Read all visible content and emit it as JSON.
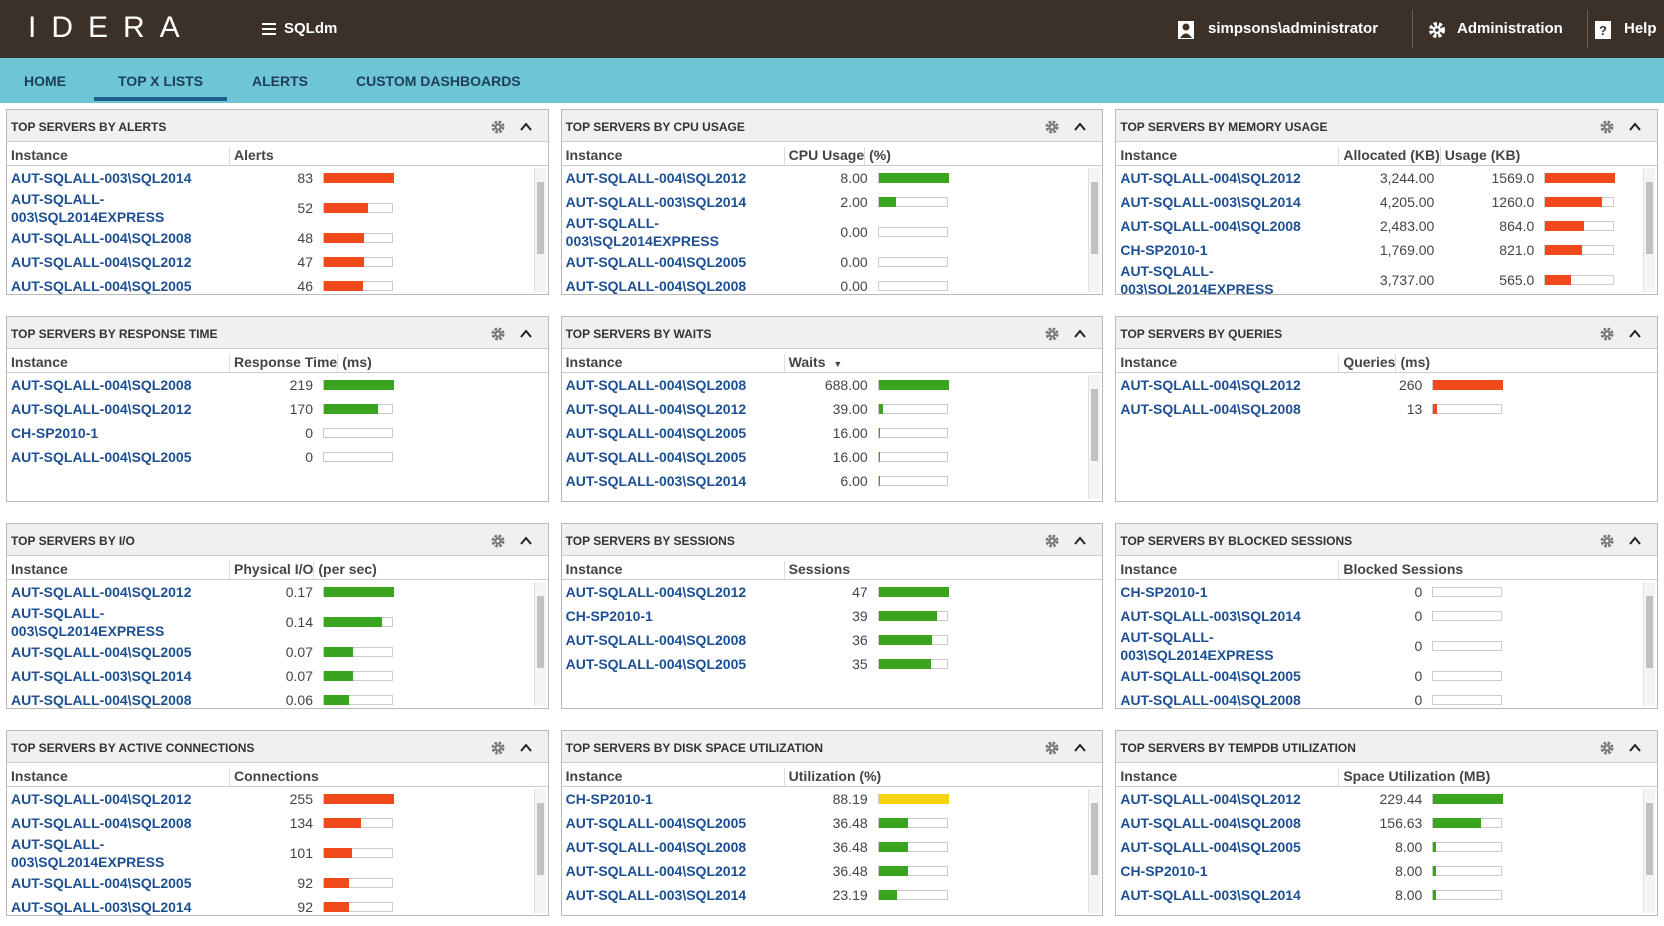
{
  "header": {
    "logo": "IDERA",
    "app": "SQLdm",
    "user": "simpsons\\administrator",
    "admin": "Administration",
    "help": "Help"
  },
  "nav": {
    "tabs": [
      "HOME",
      "TOP X LISTS",
      "ALERTS",
      "CUSTOM DASHBOARDS"
    ],
    "active": 1
  },
  "panels": [
    {
      "title": "TOP SERVERS BY ALERTS",
      "columns": [
        "Instance",
        "Alerts"
      ],
      "scrollbar": true,
      "bar_colors": [
        "#f04a1c",
        "#f04a1c",
        "#f04a1c",
        "#f04a1c",
        "#f04a1c"
      ],
      "rows": [
        [
          "AUT-SQLALL-003\\SQL2014",
          "83"
        ],
        [
          "AUT-SQLALL-003\\SQL2014EXPRESS",
          "52"
        ],
        [
          "AUT-SQLALL-004\\SQL2008",
          "48"
        ],
        [
          "AUT-SQLALL-004\\SQL2012",
          "47"
        ],
        [
          "AUT-SQLALL-004\\SQL2005",
          "46"
        ]
      ]
    },
    {
      "title": "TOP SERVERS BY CPU USAGE",
      "columns": [
        "Instance",
        "CPU Usage",
        "(%)"
      ],
      "scrollbar": true,
      "bar_colors": [
        "#3aa320",
        "#3aa320",
        "#3aa320",
        "#3aa320",
        "#3aa320"
      ],
      "rows": [
        [
          "AUT-SQLALL-004\\SQL2012",
          "8.00"
        ],
        [
          "AUT-SQLALL-003\\SQL2014",
          "2.00"
        ],
        [
          "AUT-SQLALL-003\\SQL2014EXPRESS",
          "0.00"
        ],
        [
          "AUT-SQLALL-004\\SQL2005",
          "0.00"
        ],
        [
          "AUT-SQLALL-004\\SQL2008",
          "0.00"
        ]
      ]
    },
    {
      "title": "TOP SERVERS BY MEMORY USAGE",
      "columns": [
        "Instance",
        "Allocated (KB)",
        "Usage (KB)"
      ],
      "scrollbar": true,
      "bar_colors": [
        "#f04a1c",
        "#f04a1c",
        "#f04a1c",
        "#f04a1c",
        "#f04a1c"
      ],
      "rows": [
        [
          "AUT-SQLALL-004\\SQL2012",
          "3,244.00",
          "1569.0"
        ],
        [
          "AUT-SQLALL-003\\SQL2014",
          "4,205.00",
          "1260.0"
        ],
        [
          "AUT-SQLALL-004\\SQL2008",
          "2,483.00",
          "864.0"
        ],
        [
          "CH-SP2010-1",
          "1,769.00",
          "821.0"
        ],
        [
          "AUT-SQLALL-003\\SQL2014EXPRESS",
          "3,737.00",
          "565.0"
        ]
      ]
    },
    {
      "title": "TOP SERVERS BY RESPONSE TIME",
      "columns": [
        "Instance",
        "Response Time",
        "(ms)"
      ],
      "scrollbar": false,
      "bar_colors": [
        "#3aa320",
        "#3aa320",
        "#3aa320",
        "#3aa320"
      ],
      "rows": [
        [
          "AUT-SQLALL-004\\SQL2008",
          "219"
        ],
        [
          "AUT-SQLALL-004\\SQL2012",
          "170"
        ],
        [
          "CH-SP2010-1",
          "0"
        ],
        [
          "AUT-SQLALL-004\\SQL2005",
          "0"
        ]
      ]
    },
    {
      "title": "TOP SERVERS BY WAITS",
      "columns": [
        "Instance",
        "Waits"
      ],
      "scrollbar": true,
      "bar_colors": [
        "#3aa320",
        "#3aa320",
        "#3aa320",
        "#3aa320",
        "#3aa320"
      ],
      "rows": [
        [
          "AUT-SQLALL-004\\SQL2008",
          "688.00"
        ],
        [
          "AUT-SQLALL-004\\SQL2012",
          "39.00"
        ],
        [
          "AUT-SQLALL-004\\SQL2005",
          "16.00"
        ],
        [
          "AUT-SQLALL-004\\SQL2005",
          "16.00"
        ],
        [
          "AUT-SQLALL-003\\SQL2014",
          "6.00"
        ]
      ]
    },
    {
      "title": "TOP SERVERS BY QUERIES",
      "columns": [
        "Instance",
        "Queries",
        "(ms)"
      ],
      "scrollbar": false,
      "bar_colors": [
        "#f04a1c",
        "#f04a1c"
      ],
      "rows": [
        [
          "AUT-SQLALL-004\\SQL2012",
          "260"
        ],
        [
          "AUT-SQLALL-004\\SQL2008",
          "13"
        ]
      ]
    },
    {
      "title": "TOP SERVERS BY I/O",
      "columns": [
        "Instance",
        "Physical I/O",
        "(per sec)"
      ],
      "scrollbar": true,
      "bar_colors": [
        "#3aa320",
        "#3aa320",
        "#3aa320",
        "#3aa320",
        "#3aa320"
      ],
      "rows": [
        [
          "AUT-SQLALL-004\\SQL2012",
          "0.17"
        ],
        [
          "AUT-SQLALL-003\\SQL2014EXPRESS",
          "0.14"
        ],
        [
          "AUT-SQLALL-004\\SQL2005",
          "0.07"
        ],
        [
          "AUT-SQLALL-003\\SQL2014",
          "0.07"
        ],
        [
          "AUT-SQLALL-004\\SQL2008",
          "0.06"
        ]
      ]
    },
    {
      "title": "TOP SERVERS BY SESSIONS",
      "columns": [
        "Instance",
        "Sessions"
      ],
      "scrollbar": false,
      "bar_colors": [
        "#3aa320",
        "#3aa320",
        "#3aa320",
        "#3aa320"
      ],
      "rows": [
        [
          "AUT-SQLALL-004\\SQL2012",
          "47"
        ],
        [
          "CH-SP2010-1",
          "39"
        ],
        [
          "AUT-SQLALL-004\\SQL2008",
          "36"
        ],
        [
          "AUT-SQLALL-004\\SQL2005",
          "35"
        ]
      ]
    },
    {
      "title": "TOP SERVERS BY BLOCKED SESSIONS",
      "columns": [
        "Instance",
        "Blocked Sessions"
      ],
      "scrollbar": true,
      "bar_colors": [
        "#3aa320",
        "#3aa320",
        "#3aa320",
        "#3aa320",
        "#3aa320"
      ],
      "rows": [
        [
          "CH-SP2010-1",
          "0"
        ],
        [
          "AUT-SQLALL-003\\SQL2014",
          "0"
        ],
        [
          "AUT-SQLALL-003\\SQL2014EXPRESS",
          "0"
        ],
        [
          "AUT-SQLALL-004\\SQL2005",
          "0"
        ],
        [
          "AUT-SQLALL-004\\SQL2008",
          "0"
        ]
      ]
    },
    {
      "title": "TOP SERVERS BY ACTIVE CONNECTIONS",
      "columns": [
        "Instance",
        "Connections"
      ],
      "scrollbar": true,
      "bar_colors": [
        "#f04a1c",
        "#f04a1c",
        "#f04a1c",
        "#f04a1c",
        "#f04a1c"
      ],
      "rows": [
        [
          "AUT-SQLALL-004\\SQL2012",
          "255"
        ],
        [
          "AUT-SQLALL-004\\SQL2008",
          "134"
        ],
        [
          "AUT-SQLALL-003\\SQL2014EXPRESS",
          "101"
        ],
        [
          "AUT-SQLALL-004\\SQL2005",
          "92"
        ],
        [
          "AUT-SQLALL-003\\SQL2014",
          "92"
        ]
      ]
    },
    {
      "title": "TOP SERVERS BY DISK SPACE UTILIZATION",
      "columns": [
        "Instance",
        "Utilization (%)"
      ],
      "scrollbar": true,
      "bar_colors": [
        "#f5d40f",
        "#3aa320",
        "#3aa320",
        "#3aa320",
        "#3aa320"
      ],
      "rows": [
        [
          "CH-SP2010-1",
          "88.19"
        ],
        [
          "AUT-SQLALL-004\\SQL2005",
          "36.48"
        ],
        [
          "AUT-SQLALL-004\\SQL2008",
          "36.48"
        ],
        [
          "AUT-SQLALL-004\\SQL2012",
          "36.48"
        ],
        [
          "AUT-SQLALL-003\\SQL2014",
          "23.19"
        ]
      ]
    },
    {
      "title": "TOP SERVERS BY TEMPDB UTILIZATION",
      "columns": [
        "Instance",
        "Space Utilization (MB)"
      ],
      "scrollbar": true,
      "bar_colors": [
        "#3aa320",
        "#3aa320",
        "#3aa320",
        "#3aa320",
        "#3aa320"
      ],
      "rows": [
        [
          "AUT-SQLALL-004\\SQL2012",
          "229.44"
        ],
        [
          "AUT-SQLALL-004\\SQL2008",
          "156.63"
        ],
        [
          "AUT-SQLALL-004\\SQL2005",
          "8.00"
        ],
        [
          "CH-SP2010-1",
          "8.00"
        ],
        [
          "AUT-SQLALL-003\\SQL2014",
          "8.00"
        ]
      ]
    }
  ]
}
